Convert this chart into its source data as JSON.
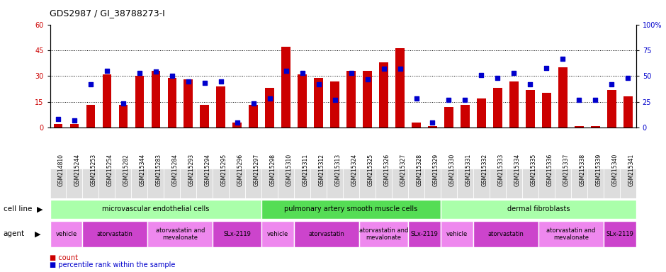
{
  "title": "GDS2987 / GI_38788273-I",
  "samples": [
    "GSM214810",
    "GSM215244",
    "GSM215253",
    "GSM215254",
    "GSM215282",
    "GSM215344",
    "GSM215283",
    "GSM215284",
    "GSM215293",
    "GSM215294",
    "GSM215295",
    "GSM215296",
    "GSM215297",
    "GSM215298",
    "GSM215310",
    "GSM215311",
    "GSM215312",
    "GSM215313",
    "GSM215324",
    "GSM215325",
    "GSM215326",
    "GSM215327",
    "GSM215328",
    "GSM215329",
    "GSM215330",
    "GSM215331",
    "GSM215332",
    "GSM215333",
    "GSM215334",
    "GSM215335",
    "GSM215336",
    "GSM215337",
    "GSM215338",
    "GSM215339",
    "GSM215340",
    "GSM215341"
  ],
  "counts": [
    2,
    2,
    13,
    31,
    13,
    30,
    33,
    29,
    28,
    13,
    24,
    3,
    13,
    23,
    47,
    31,
    29,
    27,
    33,
    33,
    38,
    46,
    3,
    1,
    12,
    13,
    17,
    23,
    27,
    22,
    20,
    35,
    1,
    1,
    22,
    18
  ],
  "percentiles": [
    8,
    7,
    42,
    55,
    23,
    53,
    54,
    50,
    45,
    43,
    45,
    5,
    23,
    28,
    55,
    53,
    42,
    27,
    53,
    47,
    57,
    57,
    28,
    5,
    27,
    27,
    51,
    48,
    53,
    42,
    58,
    67,
    27,
    27,
    42,
    48
  ],
  "ylim_left": [
    0,
    60
  ],
  "ylim_right": [
    0,
    100
  ],
  "yticks_left": [
    0,
    15,
    30,
    45,
    60
  ],
  "yticks_right": [
    0,
    25,
    50,
    75,
    100
  ],
  "bar_color": "#cc0000",
  "dot_color": "#0000cc",
  "cell_line_groups": [
    {
      "label": "microvascular endothelial cells",
      "start": 0,
      "end": 13,
      "color": "#aaffaa"
    },
    {
      "label": "pulmonary artery smooth muscle cells",
      "start": 13,
      "end": 24,
      "color": "#55dd55"
    },
    {
      "label": "dermal fibroblasts",
      "start": 24,
      "end": 36,
      "color": "#aaffaa"
    }
  ],
  "agent_groups": [
    {
      "label": "vehicle",
      "start": 0,
      "end": 2,
      "color": "#ee88ee"
    },
    {
      "label": "atorvastatin",
      "start": 2,
      "end": 6,
      "color": "#cc44cc"
    },
    {
      "label": "atorvastatin and\nmevalonate",
      "start": 6,
      "end": 10,
      "color": "#ee88ee"
    },
    {
      "label": "SLx-2119",
      "start": 10,
      "end": 13,
      "color": "#cc44cc"
    },
    {
      "label": "vehicle",
      "start": 13,
      "end": 15,
      "color": "#ee88ee"
    },
    {
      "label": "atorvastatin",
      "start": 15,
      "end": 19,
      "color": "#cc44cc"
    },
    {
      "label": "atorvastatin and\nmevalonate",
      "start": 19,
      "end": 22,
      "color": "#ee88ee"
    },
    {
      "label": "SLx-2119",
      "start": 22,
      "end": 24,
      "color": "#cc44cc"
    },
    {
      "label": "vehicle",
      "start": 24,
      "end": 26,
      "color": "#ee88ee"
    },
    {
      "label": "atorvastatin",
      "start": 26,
      "end": 30,
      "color": "#cc44cc"
    },
    {
      "label": "atorvastatin and\nmevalonate",
      "start": 30,
      "end": 34,
      "color": "#ee88ee"
    },
    {
      "label": "SLx-2119",
      "start": 34,
      "end": 36,
      "color": "#cc44cc"
    }
  ],
  "legend_count_color": "#cc0000",
  "legend_dot_color": "#0000cc",
  "background_color": "#ffffff",
  "title_fontsize": 9,
  "tick_fontsize": 7,
  "sample_tick_fontsize": 6
}
